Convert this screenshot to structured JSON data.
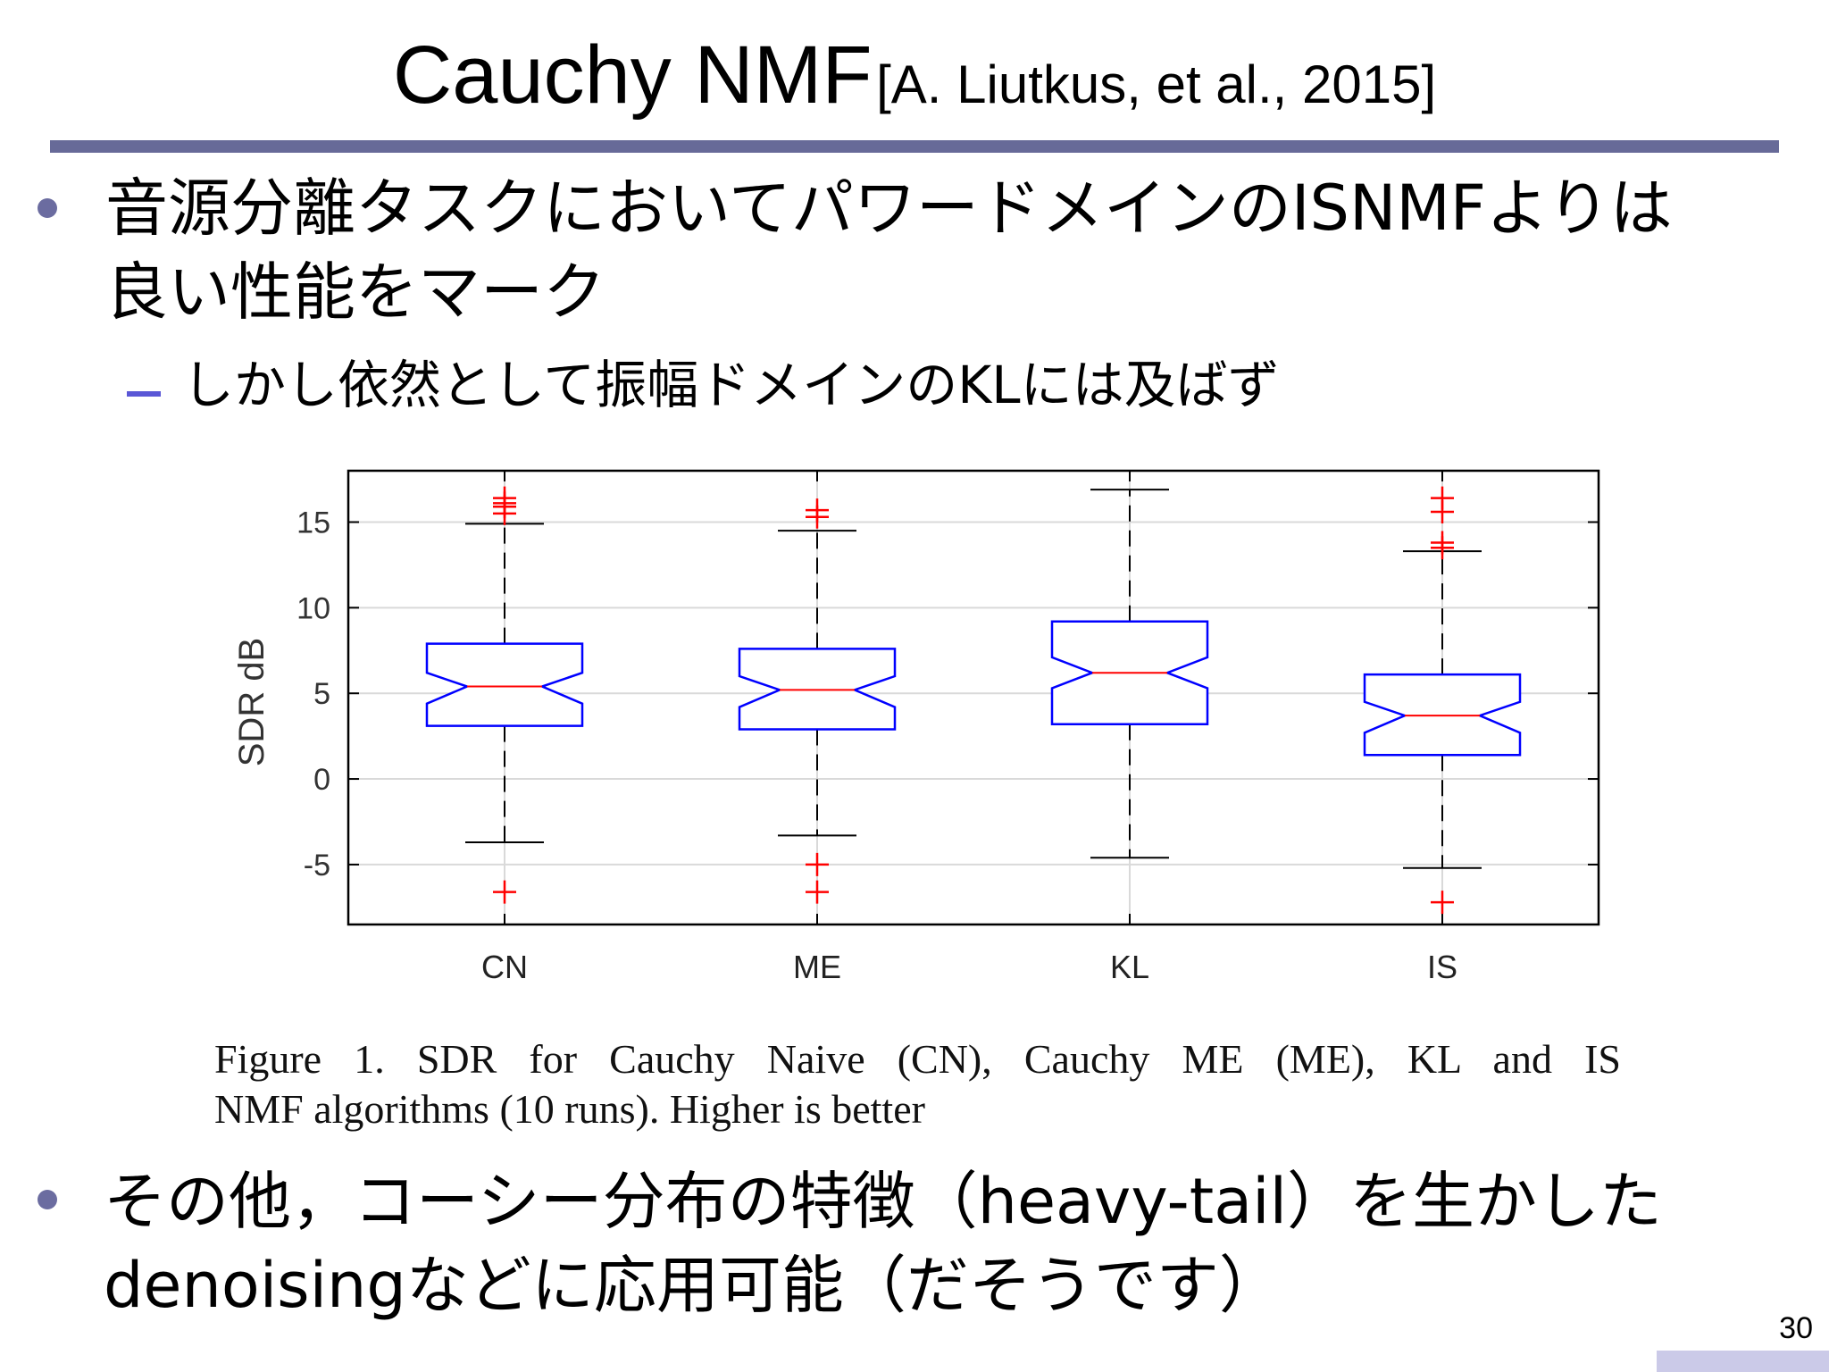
{
  "slide": {
    "title_main": "Cauchy NMF",
    "title_cite": "[A. Liutkus, et al., 2015]",
    "bullet1_line1": "音源分離タスクにおいてパワードメインのISNMFよりは",
    "bullet1_line2": "良い性能をマーク",
    "sub1": "しかし依然として振幅ドメインのKLには及ばず",
    "caption_line1": "Figure 1.   SDR for Cauchy Naive (CN), Cauchy ME (ME), KL and IS",
    "caption_line2": "NMF algorithms (10 runs). Higher is better",
    "bullet2_line1": "その他，コーシー分布の特徴（heavy-tail）を生かした",
    "bullet2_line2": "denoisingなどに応用可能（だそうです）",
    "page_number": "30"
  },
  "colors": {
    "title_rule": "#676a98",
    "bullet": "#6b6ca0",
    "sub_dash": "#5a57d6",
    "box": "#0000ff",
    "median": "#ff0000",
    "outlier": "#ff0000",
    "whisker": "#000000",
    "grid": "#d9d9d9"
  },
  "chart_data": {
    "type": "boxplot",
    "notched": true,
    "ylabel": "SDR dB",
    "xlabel": "",
    "ylim": [
      -8.5,
      18
    ],
    "yticks": [
      -5,
      0,
      5,
      10,
      15
    ],
    "ytick_labels": [
      "-5",
      "0",
      "5",
      "10",
      "15"
    ],
    "grid": true,
    "categories": [
      "CN",
      "ME",
      "KL",
      "IS"
    ],
    "boxes": [
      {
        "category": "CN",
        "whisker_low": -3.7,
        "q1": 3.1,
        "median": 5.4,
        "q3": 7.9,
        "whisker_high": 14.9,
        "notch_low": 4.4,
        "notch_high": 6.2,
        "outliers": [
          -6.6,
          15.5,
          15.9,
          16.1,
          16.4
        ]
      },
      {
        "category": "ME",
        "whisker_low": -3.3,
        "q1": 2.9,
        "median": 5.2,
        "q3": 7.6,
        "whisker_high": 14.5,
        "notch_low": 4.2,
        "notch_high": 6.0,
        "outliers": [
          -6.6,
          -5.0,
          15.3,
          15.7
        ]
      },
      {
        "category": "KL",
        "whisker_low": -4.6,
        "q1": 3.2,
        "median": 6.2,
        "q3": 9.2,
        "whisker_high": 16.9,
        "notch_low": 5.3,
        "notch_high": 7.1,
        "outliers": []
      },
      {
        "category": "IS",
        "whisker_low": -5.2,
        "q1": 1.4,
        "median": 3.7,
        "q3": 6.1,
        "whisker_high": 13.3,
        "notch_low": 2.7,
        "notch_high": 4.5,
        "outliers": [
          -7.2,
          13.5,
          13.8,
          15.6,
          16.4
        ]
      }
    ]
  }
}
